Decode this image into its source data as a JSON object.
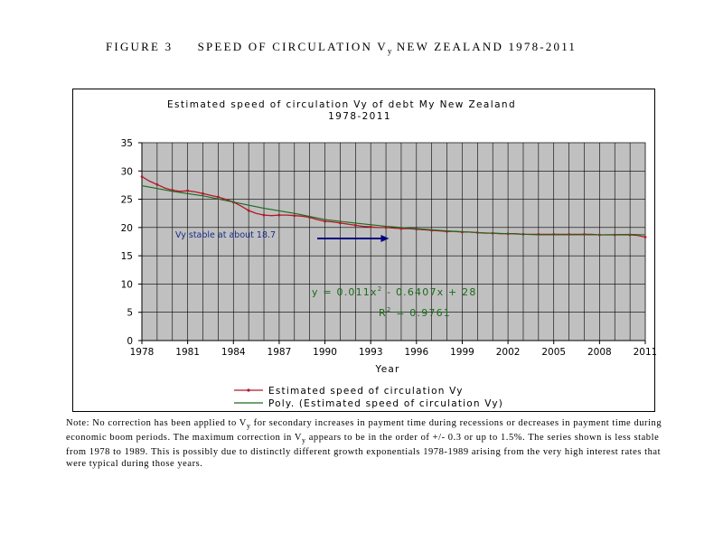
{
  "figure": {
    "label": "FIGURE 3",
    "title_prefix": "SPEED OF CIRCULATION V",
    "title_sub": "y",
    "title_suffix": " NEW ZEALAND 1978-2011"
  },
  "note": {
    "part1": "Note:  No correction has been applied to V",
    "sub1": "y",
    "part2": " for secondary increases in payment time during recessions or decreases in payment time during economic boom periods. The maximum correction in V",
    "sub2": "y",
    "part3": " appears to be in the order of +/- 0.3 or up to 1.5%. The series shown is less stable from 1978 to 1989. This is possibly due to distinctly different growth exponentials 1978-1989 arising from the very high interest rates that were typical during those years."
  },
  "chart_data": {
    "type": "line",
    "title_line1": "Estimated speed of circulation Vy of debt My New Zealand",
    "title_line2": "1978-2011",
    "xlabel": "Year",
    "ylabel": "",
    "xlim": [
      1978,
      2011
    ],
    "ylim": [
      0,
      35
    ],
    "y_ticks": [
      0,
      5,
      10,
      15,
      20,
      25,
      30,
      35
    ],
    "x_ticks": [
      1978,
      1981,
      1984,
      1987,
      1990,
      1993,
      1996,
      1999,
      2002,
      2005,
      2008,
      2011
    ],
    "grid": true,
    "plot_background": "#c0c0c0",
    "legend_position": "bottom",
    "series": [
      {
        "name": "Estimated speed of circulation Vy",
        "color": "#b2182b",
        "marker": "dot",
        "x": [
          1978,
          1978.5,
          1979,
          1979.5,
          1980,
          1980.5,
          1981,
          1981.5,
          1982,
          1982.5,
          1983,
          1983.5,
          1984,
          1984.5,
          1985,
          1985.5,
          1986,
          1986.5,
          1987,
          1987.5,
          1988,
          1988.5,
          1989,
          1989.5,
          1990,
          1990.5,
          1991,
          1991.5,
          1992,
          1992.5,
          1993,
          1993.5,
          1994,
          1994.5,
          1995,
          1995.5,
          1996,
          1996.5,
          1997,
          1997.5,
          1998,
          1998.5,
          1999,
          1999.5,
          2000,
          2000.5,
          2001,
          2001.5,
          2002,
          2002.5,
          2003,
          2003.5,
          2004,
          2004.5,
          2005,
          2005.5,
          2006,
          2006.5,
          2007,
          2007.5,
          2008,
          2008.5,
          2009,
          2009.5,
          2010,
          2010.5,
          2011
        ],
        "y": [
          29.0,
          28.2,
          27.6,
          27.0,
          26.6,
          26.4,
          26.5,
          26.3,
          26.0,
          25.7,
          25.4,
          25.0,
          24.5,
          23.8,
          23.0,
          22.5,
          22.2,
          22.1,
          22.2,
          22.2,
          22.1,
          22.0,
          21.8,
          21.4,
          21.1,
          21.0,
          20.8,
          20.6,
          20.4,
          20.2,
          20.1,
          20.0,
          20.0,
          19.9,
          19.8,
          19.8,
          19.7,
          19.6,
          19.5,
          19.4,
          19.3,
          19.3,
          19.2,
          19.2,
          19.1,
          19.0,
          19.0,
          18.9,
          18.9,
          18.9,
          18.8,
          18.8,
          18.8,
          18.8,
          18.8,
          18.8,
          18.8,
          18.8,
          18.8,
          18.8,
          18.7,
          18.7,
          18.7,
          18.7,
          18.7,
          18.6,
          18.3
        ]
      },
      {
        "name": "Poly. (Estimated speed of circulation Vy)",
        "color": "#1a6b1a",
        "marker": "none",
        "poly_coefficients": {
          "a": 0.011,
          "b": -0.6407,
          "c": 28
        },
        "x": [
          1978,
          1980,
          1982,
          1984,
          1986,
          1988,
          1990,
          1992,
          1994,
          1996,
          1998,
          2000,
          2002,
          2004,
          2006,
          2008,
          2010,
          2011
        ],
        "y": [
          27.4,
          26.4,
          25.6,
          24.5,
          23.4,
          22.5,
          21.4,
          20.8,
          20.2,
          19.8,
          19.4,
          19.1,
          18.9,
          18.7,
          18.7,
          18.7,
          18.8,
          18.7
        ]
      }
    ],
    "annotations": {
      "stable_text": "Vy stable at about 18.7",
      "arrow": {
        "x_from": 1989.5,
        "x_to": 1994.2,
        "y": 18.7,
        "color": "#00007f"
      },
      "equation": "y = 0.011x",
      "equation_sup": "2",
      "equation_rest": " - 0.6407x + 28",
      "r2_label": "R",
      "r2_sup": "2",
      "r2_rest": " = 0.9761",
      "annotation_color_text": "#1a2a8a",
      "annotation_color_eq": "#1a6b1a"
    }
  }
}
